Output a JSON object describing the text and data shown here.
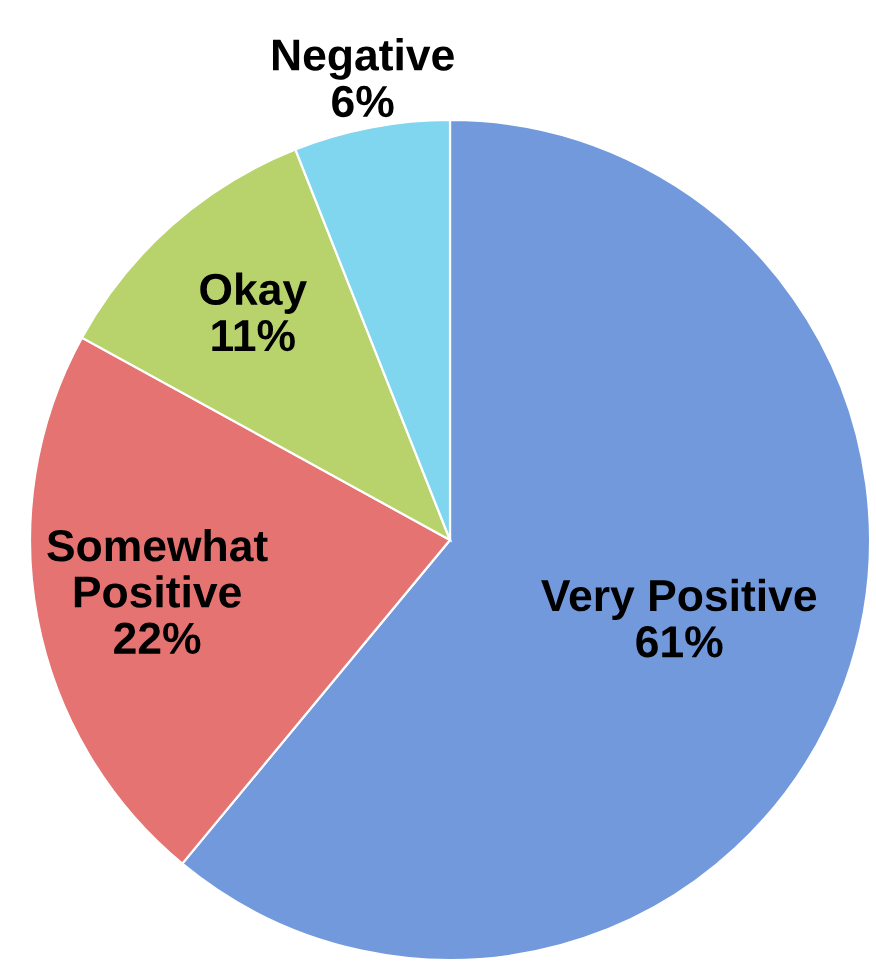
{
  "chart_data": {
    "type": "pie",
    "categories": [
      "Very Positive",
      "Somewhat Positive",
      "Okay",
      "Negative"
    ],
    "values": [
      61,
      22,
      11,
      6
    ],
    "value_labels": [
      "61%",
      "22%",
      "11%",
      "6%"
    ],
    "colors": [
      "#7199dc",
      "#e57371",
      "#b8d36b",
      "#80d5ef"
    ]
  }
}
